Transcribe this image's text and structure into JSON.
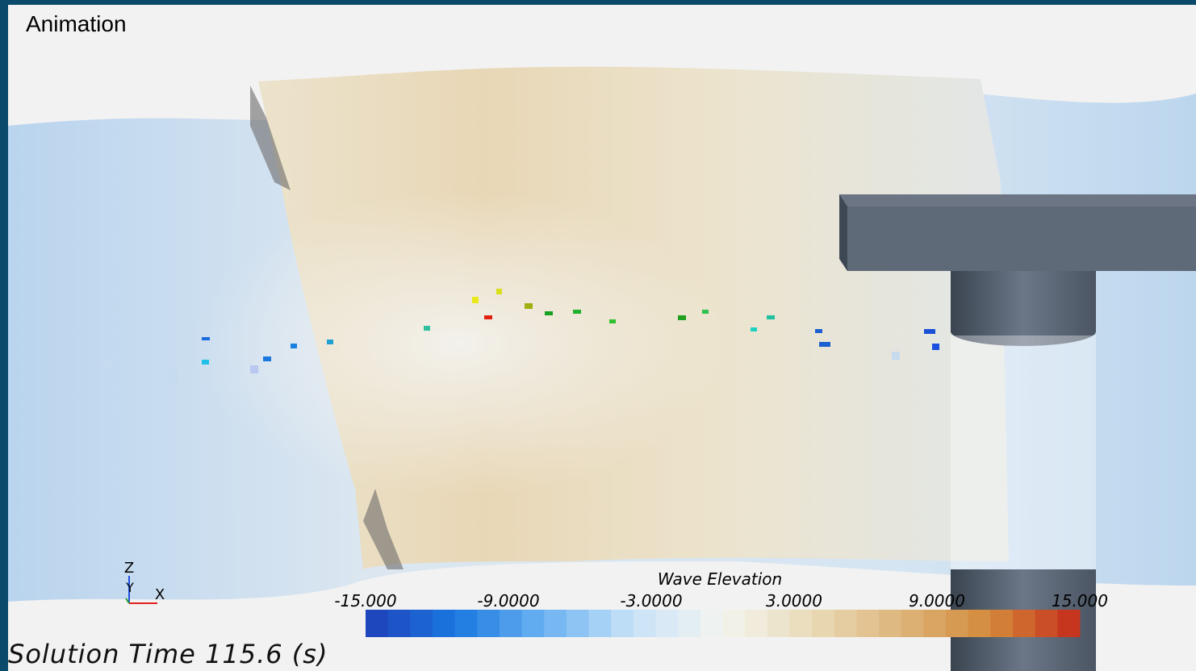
{
  "header": {
    "title": "Animation"
  },
  "triad": {
    "z": "Z",
    "y": "Y",
    "x": "X"
  },
  "legend": {
    "title": "Wave Elevation",
    "min": -15,
    "max": 15,
    "ticks": [
      {
        "value": -15,
        "label": "-15.000"
      },
      {
        "value": -9,
        "label": "-9.0000"
      },
      {
        "value": -3,
        "label": "-3.0000"
      },
      {
        "value": 3,
        "label": "3.0000"
      },
      {
        "value": 9,
        "label": "9.0000"
      },
      {
        "value": 15,
        "label": "15.000"
      }
    ],
    "colors": [
      "#1f3fb8",
      "#1a78e0",
      "#6bb2f2",
      "#c9e3f8",
      "#f3f4ef",
      "#eadbb8",
      "#ddb47a",
      "#d48a3a",
      "#c42a1a"
    ]
  },
  "solution_time": "Solution Time 115.6 (s)"
}
